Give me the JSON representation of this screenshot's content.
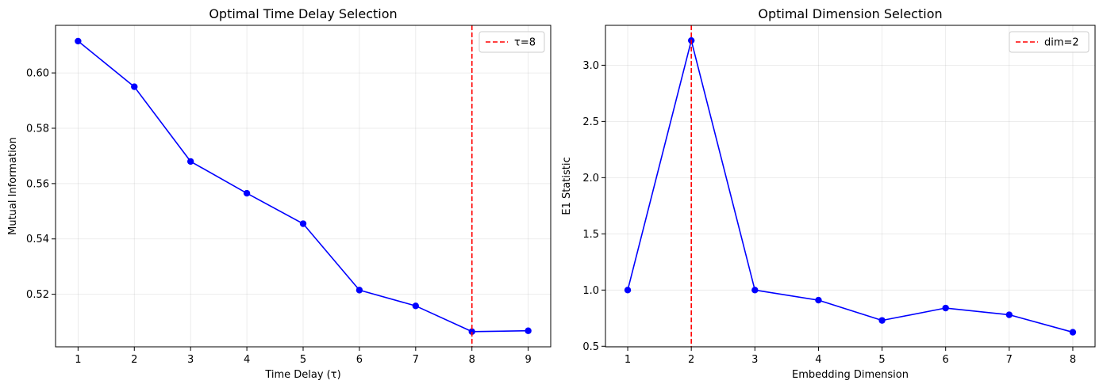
{
  "chart_data": [
    {
      "type": "line",
      "title": "Optimal Time Delay Selection",
      "xlabel": "Time Delay (τ)",
      "ylabel": "Mutual Information",
      "x": [
        1,
        2,
        3,
        4,
        5,
        6,
        7,
        8,
        9
      ],
      "series": [
        {
          "values": [
            0.6115,
            0.595,
            0.568,
            0.5565,
            0.5455,
            0.5215,
            0.5158,
            0.5065,
            0.5068
          ],
          "color": "#0000ff",
          "marker": "circle"
        }
      ],
      "xlim": [
        0.6,
        9.4
      ],
      "ylim": [
        0.501,
        0.6172
      ],
      "xticks": [
        1,
        2,
        3,
        4,
        5,
        6,
        7,
        8,
        9
      ],
      "yticks": [
        0.52,
        0.54,
        0.56,
        0.58,
        0.6
      ],
      "ytick_labels": [
        "0.52",
        "0.54",
        "0.56",
        "0.58",
        "0.60"
      ],
      "vline": {
        "x": 8,
        "label": "τ=8",
        "color": "#ff0000",
        "style": "dashed"
      },
      "legend": {
        "placement": "top-right"
      },
      "grid": true
    },
    {
      "type": "line",
      "title": "Optimal Dimension Selection",
      "xlabel": "Embedding Dimension",
      "ylabel": "E1 Statistic",
      "x": [
        1,
        2,
        3,
        4,
        5,
        6,
        7,
        8
      ],
      "series": [
        {
          "values": [
            1.0,
            3.22,
            1.0,
            0.91,
            0.73,
            0.84,
            0.78,
            0.625
          ],
          "color": "#0000ff",
          "marker": "circle"
        }
      ],
      "xlim": [
        0.65,
        8.35
      ],
      "ylim": [
        0.495,
        3.355
      ],
      "xticks": [
        1,
        2,
        3,
        4,
        5,
        6,
        7,
        8
      ],
      "yticks": [
        0.5,
        1.0,
        1.5,
        2.0,
        2.5,
        3.0
      ],
      "ytick_labels": [
        "0.5",
        "1.0",
        "1.5",
        "2.0",
        "2.5",
        "3.0"
      ],
      "vline": {
        "x": 2,
        "label": "dim=2",
        "color": "#ff0000",
        "style": "dashed"
      },
      "legend": {
        "placement": "top-right"
      },
      "grid": true
    }
  ]
}
